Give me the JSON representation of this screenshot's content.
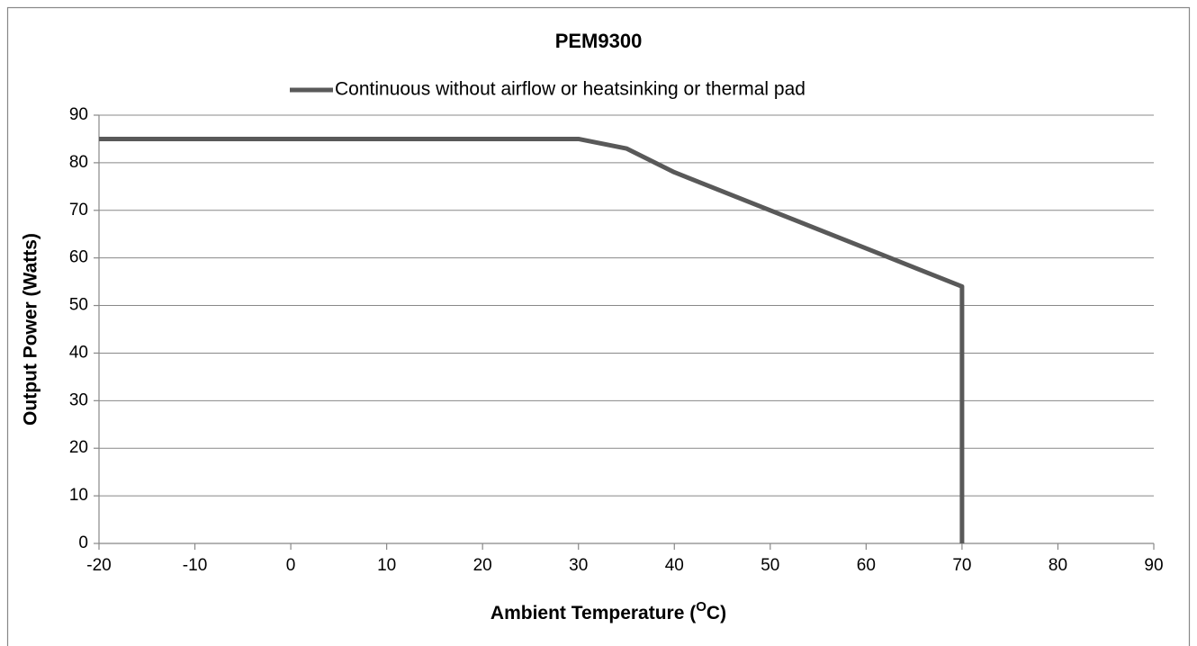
{
  "chart_data": {
    "type": "line",
    "title": "PEM9300",
    "xlabel_parts": [
      "Ambient Temperature (",
      "O",
      "C)"
    ],
    "ylabel": "Output Power (Watts)",
    "series": [
      {
        "name": "Continuous without airflow or heatsinking or thermal pad",
        "color": "#595959",
        "x": [
          -20,
          30,
          35,
          40,
          50,
          60,
          70,
          70
        ],
        "values": [
          85,
          85,
          83,
          78,
          70,
          62,
          54,
          0
        ]
      }
    ],
    "xlim": [
      -20,
      90
    ],
    "xticks": [
      -20,
      -10,
      0,
      10,
      20,
      30,
      40,
      50,
      60,
      70,
      80,
      90
    ],
    "ylim": [
      0,
      90
    ],
    "yticks": [
      0,
      10,
      20,
      30,
      40,
      50,
      60,
      70,
      80,
      90
    ],
    "grid": true,
    "legend": "top"
  }
}
